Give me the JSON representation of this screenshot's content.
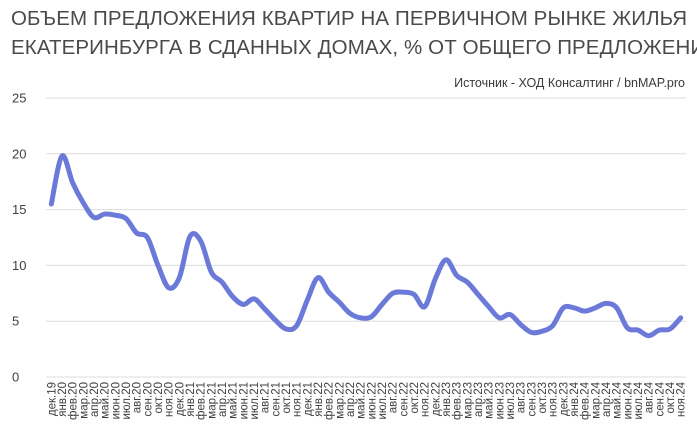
{
  "title_line1": "ОБЪЕМ ПРЕДЛОЖЕНИЯ  КВАРТИР НА ПЕРВИЧНОМ РЫНКЕ ЖИЛЬЯ",
  "title_line2": "ЕКАТЕРИНБУРГА В СДАННЫХ ДОМАХ, % ОТ ОБЩЕГО ПРЕДЛОЖЕНИЯ",
  "source": "Источник - ХОД Консалтинг / bnMAP.pro",
  "colors": {
    "series": "#6b7ad8",
    "grid": "#dcdcdc"
  },
  "chart_data": {
    "type": "line",
    "title": "ОБЪЕМ ПРЕДЛОЖЕНИЯ  КВАРТИР НА ПЕРВИЧНОМ РЫНКЕ ЖИЛЬЯ ЕКАТЕРИНБУРГА В СДАННЫХ ДОМАХ, % ОТ ОБЩЕГО ПРЕДЛОЖЕНИЯ",
    "xlabel": "",
    "ylabel": "",
    "ylim": [
      0,
      25
    ],
    "yticks": [
      0,
      5,
      10,
      15,
      20,
      25
    ],
    "grid": true,
    "legend": "none",
    "categories": [
      "дек.19",
      "янв.20",
      "фев.20",
      "мар.20",
      "апр.20",
      "май.20",
      "июн.20",
      "июл.20",
      "авг.20",
      "сен.20",
      "окт.20",
      "ноя.20",
      "дек.20",
      "янв.21",
      "фев.21",
      "мар.21",
      "апр.21",
      "май.21",
      "июн.21",
      "июл.21",
      "авг.21",
      "сен.21",
      "окт.21",
      "ноя.21",
      "дек.21",
      "янв.22",
      "фев.22",
      "мар.22",
      "апр.22",
      "май.22",
      "июн.22",
      "июл.22",
      "авг.22",
      "сен.22",
      "окт.22",
      "ноя.22",
      "дек.22",
      "янв.23",
      "фев.23",
      "мар.23",
      "апр.23",
      "май.23",
      "июн.23",
      "июл.23",
      "авг.23",
      "сен.23",
      "окт.23",
      "ноя.23",
      "дек.23",
      "янв.24",
      "фев.24",
      "мар.24",
      "апр.24",
      "май.24",
      "июн.24",
      "июл.24",
      "авг.24",
      "сен.24",
      "окт.24",
      "ноя.24"
    ],
    "series": [
      {
        "values": [
          15.5,
          19.8,
          17.4,
          15.6,
          14.3,
          14.6,
          14.5,
          14.2,
          12.9,
          12.5,
          10.0,
          8.0,
          8.9,
          12.6,
          12.2,
          9.4,
          8.5,
          7.2,
          6.5,
          7.0,
          6.1,
          5.1,
          4.3,
          4.6,
          6.9,
          8.9,
          7.6,
          6.7,
          5.7,
          5.3,
          5.4,
          6.5,
          7.5,
          7.6,
          7.4,
          6.3,
          8.8,
          10.5,
          9.1,
          8.5,
          7.4,
          6.3,
          5.3,
          5.6,
          4.7,
          4.0,
          4.1,
          4.6,
          6.2,
          6.2,
          5.9,
          6.2,
          6.6,
          6.2,
          4.4,
          4.2,
          3.7,
          4.2,
          4.3,
          5.3
        ]
      }
    ]
  }
}
